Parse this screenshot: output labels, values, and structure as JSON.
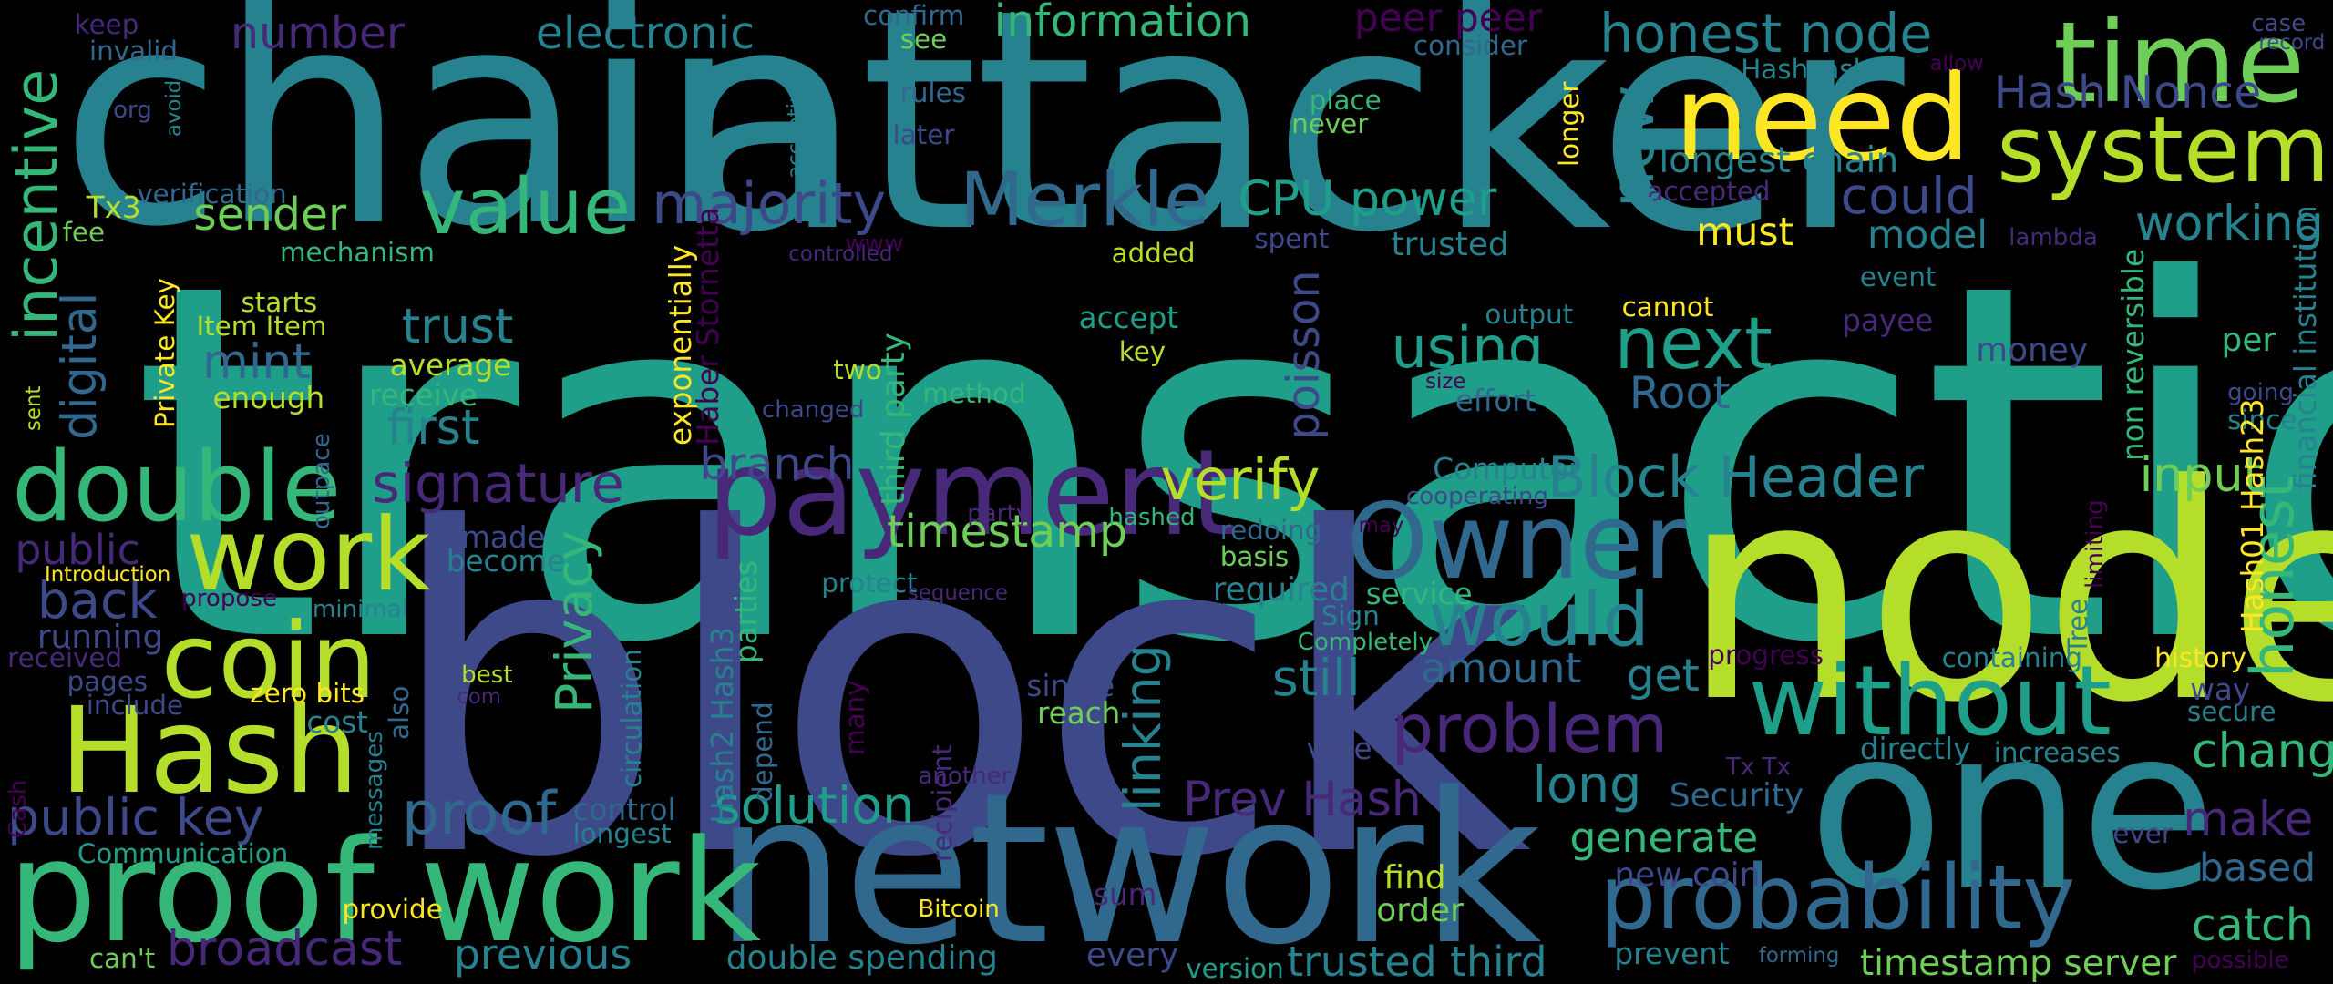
{
  "palette": {
    "background": "#000000",
    "colors": [
      "#440154",
      "#482878",
      "#3e4989",
      "#31688e",
      "#26828e",
      "#1f9e89",
      "#35b779",
      "#6ece58",
      "#b5de2b",
      "#fde725"
    ]
  },
  "words": [
    {
      "text": "transaction"
    },
    {
      "text": "block"
    },
    {
      "text": "chain"
    },
    {
      "text": "attacker"
    },
    {
      "text": "node"
    },
    {
      "text": "network"
    },
    {
      "text": "one"
    },
    {
      "text": "proof work"
    },
    {
      "text": "Hash"
    },
    {
      "text": "need"
    },
    {
      "text": "time"
    },
    {
      "text": "payment"
    },
    {
      "text": "Owner"
    },
    {
      "text": "without"
    },
    {
      "text": "probability"
    },
    {
      "text": "coin"
    },
    {
      "text": "work"
    },
    {
      "text": "double"
    },
    {
      "text": "system"
    },
    {
      "text": "value"
    },
    {
      "text": "would"
    },
    {
      "text": "Merkle"
    },
    {
      "text": "problem"
    },
    {
      "text": "next"
    },
    {
      "text": "honest node"
    },
    {
      "text": "Hash Nonce"
    },
    {
      "text": "majority"
    },
    {
      "text": "CPU power"
    },
    {
      "text": "signature"
    },
    {
      "text": "Block Header"
    },
    {
      "text": "verify"
    },
    {
      "text": "using"
    },
    {
      "text": "information"
    },
    {
      "text": "electronic"
    },
    {
      "text": "number"
    },
    {
      "text": "sender"
    },
    {
      "text": "public key"
    },
    {
      "text": "proof"
    },
    {
      "text": "solution"
    },
    {
      "text": "broadcast"
    },
    {
      "text": "timestamp"
    },
    {
      "text": "Prev Hash"
    },
    {
      "text": "long"
    },
    {
      "text": "could"
    },
    {
      "text": "working"
    },
    {
      "text": "change"
    },
    {
      "text": "make"
    },
    {
      "text": "catch"
    },
    {
      "text": "input"
    },
    {
      "text": "Root"
    },
    {
      "text": "still"
    },
    {
      "text": "amount"
    },
    {
      "text": "mint"
    },
    {
      "text": "trust"
    },
    {
      "text": "first"
    },
    {
      "text": "back"
    },
    {
      "text": "branch"
    },
    {
      "text": "previous"
    },
    {
      "text": "trusted third"
    },
    {
      "text": "double spending"
    },
    {
      "text": "timestamp server"
    },
    {
      "text": "longest chain"
    },
    {
      "text": "model"
    },
    {
      "text": "must"
    },
    {
      "text": "get"
    },
    {
      "text": "generate"
    },
    {
      "text": "new coin"
    },
    {
      "text": "based"
    },
    {
      "text": "peer peer"
    },
    {
      "text": "public"
    },
    {
      "text": "running"
    },
    {
      "text": "cost"
    },
    {
      "text": "control"
    },
    {
      "text": "accept"
    },
    {
      "text": "average"
    },
    {
      "text": "receive"
    },
    {
      "text": "enough"
    },
    {
      "text": "Item Item"
    },
    {
      "text": "starts"
    },
    {
      "text": "mechanism"
    },
    {
      "text": "verification"
    },
    {
      "text": "fee"
    },
    {
      "text": "keep"
    },
    {
      "text": "invalid"
    },
    {
      "text": "org"
    },
    {
      "text": "confirm"
    },
    {
      "text": "see"
    },
    {
      "text": "rules"
    },
    {
      "text": "later"
    },
    {
      "text": "consider"
    },
    {
      "text": "Hashcash"
    },
    {
      "text": "allow"
    },
    {
      "text": "case"
    },
    {
      "text": "record"
    },
    {
      "text": "place"
    },
    {
      "text": "never"
    },
    {
      "text": "accepted"
    },
    {
      "text": "spent"
    },
    {
      "text": "trusted"
    },
    {
      "text": "added"
    },
    {
      "text": "key"
    },
    {
      "text": "two"
    },
    {
      "text": "changed"
    },
    {
      "text": "method"
    },
    {
      "text": "www"
    },
    {
      "text": "controlled"
    },
    {
      "text": "lambda"
    },
    {
      "text": "event"
    },
    {
      "text": "output"
    },
    {
      "text": "cannot"
    },
    {
      "text": "payee"
    },
    {
      "text": "per"
    },
    {
      "text": "money"
    },
    {
      "text": "going"
    },
    {
      "text": "since"
    },
    {
      "text": "effort"
    },
    {
      "text": "size"
    },
    {
      "text": "Computer"
    },
    {
      "text": "cooperating"
    },
    {
      "text": "redoing"
    },
    {
      "text": "basis"
    },
    {
      "text": "required"
    },
    {
      "text": "service"
    },
    {
      "text": "Sign"
    },
    {
      "text": "Completely"
    },
    {
      "text": "hashed"
    },
    {
      "text": "may"
    },
    {
      "text": "made"
    },
    {
      "text": "become"
    },
    {
      "text": "protect"
    },
    {
      "text": "sequence"
    },
    {
      "text": "party"
    },
    {
      "text": "propose"
    },
    {
      "text": "minimal"
    },
    {
      "text": "Introduction"
    },
    {
      "text": "received"
    },
    {
      "text": "pages"
    },
    {
      "text": "include"
    },
    {
      "text": "zero bits"
    },
    {
      "text": "best"
    },
    {
      "text": "com"
    },
    {
      "text": "single"
    },
    {
      "text": "reach"
    },
    {
      "text": "progress"
    },
    {
      "text": "containing"
    },
    {
      "text": "history"
    },
    {
      "text": "way"
    },
    {
      "text": "secure"
    },
    {
      "text": "directly"
    },
    {
      "text": "increases"
    },
    {
      "text": "ever"
    },
    {
      "text": "Security"
    },
    {
      "text": "Tx Tx"
    },
    {
      "text": "prevent"
    },
    {
      "text": "forming"
    },
    {
      "text": "possible"
    },
    {
      "text": "find"
    },
    {
      "text": "order"
    },
    {
      "text": "sum"
    },
    {
      "text": "every"
    },
    {
      "text": "version"
    },
    {
      "text": "vote"
    },
    {
      "text": "another"
    },
    {
      "text": "Bitcoin"
    },
    {
      "text": "provide"
    },
    {
      "text": "Communication"
    },
    {
      "text": "can't"
    },
    {
      "text": "Cash"
    },
    {
      "text": "sent"
    },
    {
      "text": "Tx3"
    },
    {
      "text": "incentive"
    },
    {
      "text": "digital"
    },
    {
      "text": "Private Key"
    },
    {
      "text": "outpace"
    },
    {
      "text": "avoid"
    },
    {
      "text": "exponentially"
    },
    {
      "text": "Haber Stornetta"
    },
    {
      "text": "accepting"
    },
    {
      "text": "new"
    },
    {
      "text": "poisson"
    },
    {
      "text": "Privacy"
    },
    {
      "text": "linking"
    },
    {
      "text": "third party"
    },
    {
      "text": "circulation"
    },
    {
      "text": "Hash2 Hash3"
    },
    {
      "text": "parties"
    },
    {
      "text": "depend"
    },
    {
      "text": "recipient"
    },
    {
      "text": "many"
    },
    {
      "text": "messages"
    },
    {
      "text": "also"
    },
    {
      "text": "longer"
    },
    {
      "text": "honest"
    },
    {
      "text": "Hash01 Hash23"
    },
    {
      "text": "limiting"
    },
    {
      "text": "Tree"
    },
    {
      "text": "non reversible"
    },
    {
      "text": "financial institution"
    },
    {
      "text": "longest"
    }
  ]
}
